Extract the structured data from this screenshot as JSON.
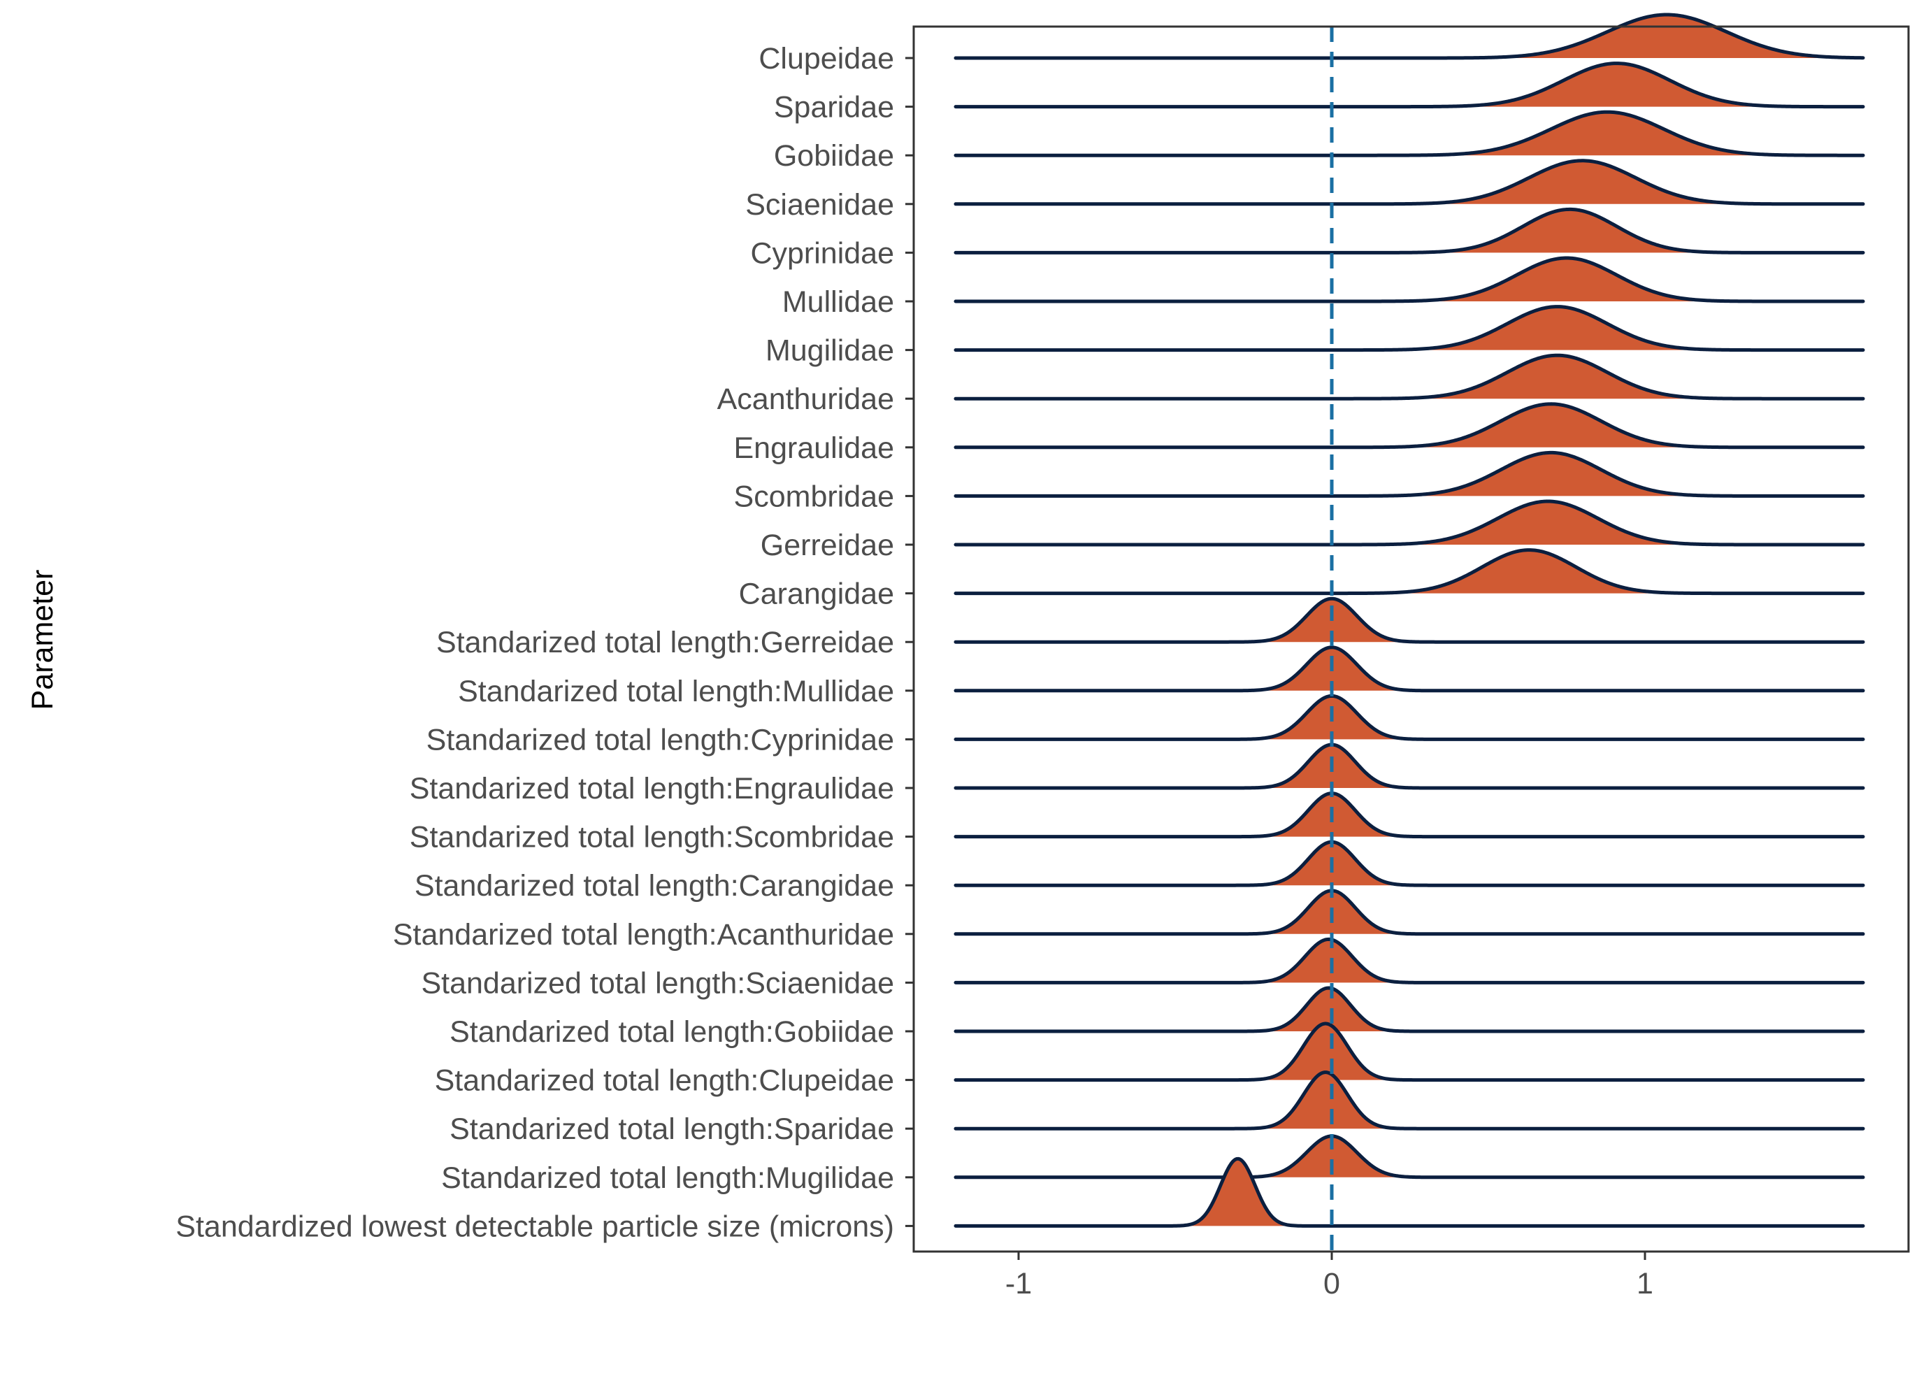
{
  "chart_data": {
    "type": "ridgeline",
    "title": "",
    "xlabel": "",
    "ylabel": "Parameter",
    "xlim": [
      -1.3,
      1.85
    ],
    "x_ticks": [
      -1,
      0,
      1
    ],
    "x_tick_labels": [
      "-1",
      "0",
      "1"
    ],
    "reference_line": {
      "x": 0,
      "style": "dashed",
      "color": "#1f77b4"
    },
    "colors": {
      "fill": "#d05a33",
      "outline": "#0b1f3f",
      "reference": "#1a6fa3",
      "axis": "#333333"
    },
    "grid": false,
    "legend": "none",
    "series": [
      {
        "name": "Clupeidae",
        "mean": 1.07,
        "sd": 0.19,
        "peak": 1.0
      },
      {
        "name": "Sparidae",
        "mean": 0.91,
        "sd": 0.17,
        "peak": 1.0
      },
      {
        "name": "Gobiidae",
        "mean": 0.88,
        "sd": 0.18,
        "peak": 1.0
      },
      {
        "name": "Sciaenidae",
        "mean": 0.8,
        "sd": 0.17,
        "peak": 1.0
      },
      {
        "name": "Cyprinidae",
        "mean": 0.76,
        "sd": 0.15,
        "peak": 1.0
      },
      {
        "name": "Mullidae",
        "mean": 0.75,
        "sd": 0.16,
        "peak": 1.0
      },
      {
        "name": "Mugilidae",
        "mean": 0.72,
        "sd": 0.16,
        "peak": 1.0
      },
      {
        "name": "Acanthuridae",
        "mean": 0.72,
        "sd": 0.16,
        "peak": 1.0
      },
      {
        "name": "Engraulidae",
        "mean": 0.7,
        "sd": 0.16,
        "peak": 1.0
      },
      {
        "name": "Scombridae",
        "mean": 0.7,
        "sd": 0.16,
        "peak": 1.0
      },
      {
        "name": "Gerreidae",
        "mean": 0.69,
        "sd": 0.16,
        "peak": 1.0
      },
      {
        "name": "Carangidae",
        "mean": 0.63,
        "sd": 0.15,
        "peak": 1.0
      },
      {
        "name": "Standarized total length:Gerreidae",
        "mean": 0.0,
        "sd": 0.08,
        "peak": 1.0
      },
      {
        "name": "Standarized total length:Mullidae",
        "mean": 0.0,
        "sd": 0.08,
        "peak": 1.0
      },
      {
        "name": "Standarized total length:Cyprinidae",
        "mean": 0.0,
        "sd": 0.08,
        "peak": 1.0
      },
      {
        "name": "Standarized total length:Engraulidae",
        "mean": 0.0,
        "sd": 0.075,
        "peak": 1.0
      },
      {
        "name": "Standarized total length:Scombridae",
        "mean": 0.0,
        "sd": 0.075,
        "peak": 1.0
      },
      {
        "name": "Standarized total length:Carangidae",
        "mean": 0.0,
        "sd": 0.075,
        "peak": 1.0
      },
      {
        "name": "Standarized total length:Acanthuridae",
        "mean": 0.0,
        "sd": 0.075,
        "peak": 1.0
      },
      {
        "name": "Standarized total length:Sciaenidae",
        "mean": -0.01,
        "sd": 0.075,
        "peak": 1.0
      },
      {
        "name": "Standarized total length:Gobiidae",
        "mean": -0.01,
        "sd": 0.07,
        "peak": 1.0
      },
      {
        "name": "Standarized total length:Clupeidae",
        "mean": -0.02,
        "sd": 0.07,
        "peak": 1.3
      },
      {
        "name": "Standarized total length:Sparidae",
        "mean": -0.02,
        "sd": 0.07,
        "peak": 1.3
      },
      {
        "name": "Standarized total length:Mugilidae",
        "mean": 0.0,
        "sd": 0.08,
        "peak": 0.95
      },
      {
        "name": "Standardized lowest detectable particle size (microns)",
        "mean": -0.3,
        "sd": 0.055,
        "peak": 1.55
      }
    ]
  }
}
